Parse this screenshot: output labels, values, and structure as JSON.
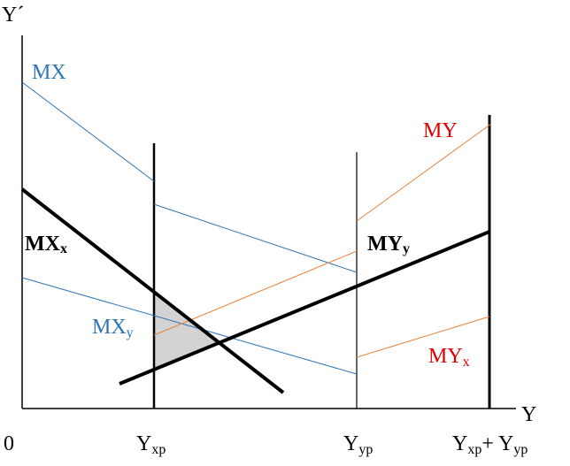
{
  "colors": {
    "axis": "#000000",
    "mx": "#2e75b6",
    "my": "#e8823a",
    "my_label": "#e00000",
    "shade": "#d3d3d3"
  },
  "axes": {
    "y_label": "Y´",
    "x_label": "Y",
    "origin": "0"
  },
  "x_ticks": [
    {
      "main": "Y",
      "sub": "xp"
    },
    {
      "main": "Y",
      "sub": "yp"
    },
    {
      "main": "Y",
      "sub": "xp",
      "main2": "+ Y",
      "sub2": "yp"
    }
  ],
  "curve_labels": {
    "mx": "MX",
    "my": "MY",
    "mxx": {
      "main": "MX",
      "sub": "x"
    },
    "myy": {
      "main": "MY",
      "sub": "y"
    },
    "mxy": {
      "main": "MX",
      "sub": "y"
    },
    "myx": {
      "main": "MY",
      "sub": "x"
    }
  }
}
